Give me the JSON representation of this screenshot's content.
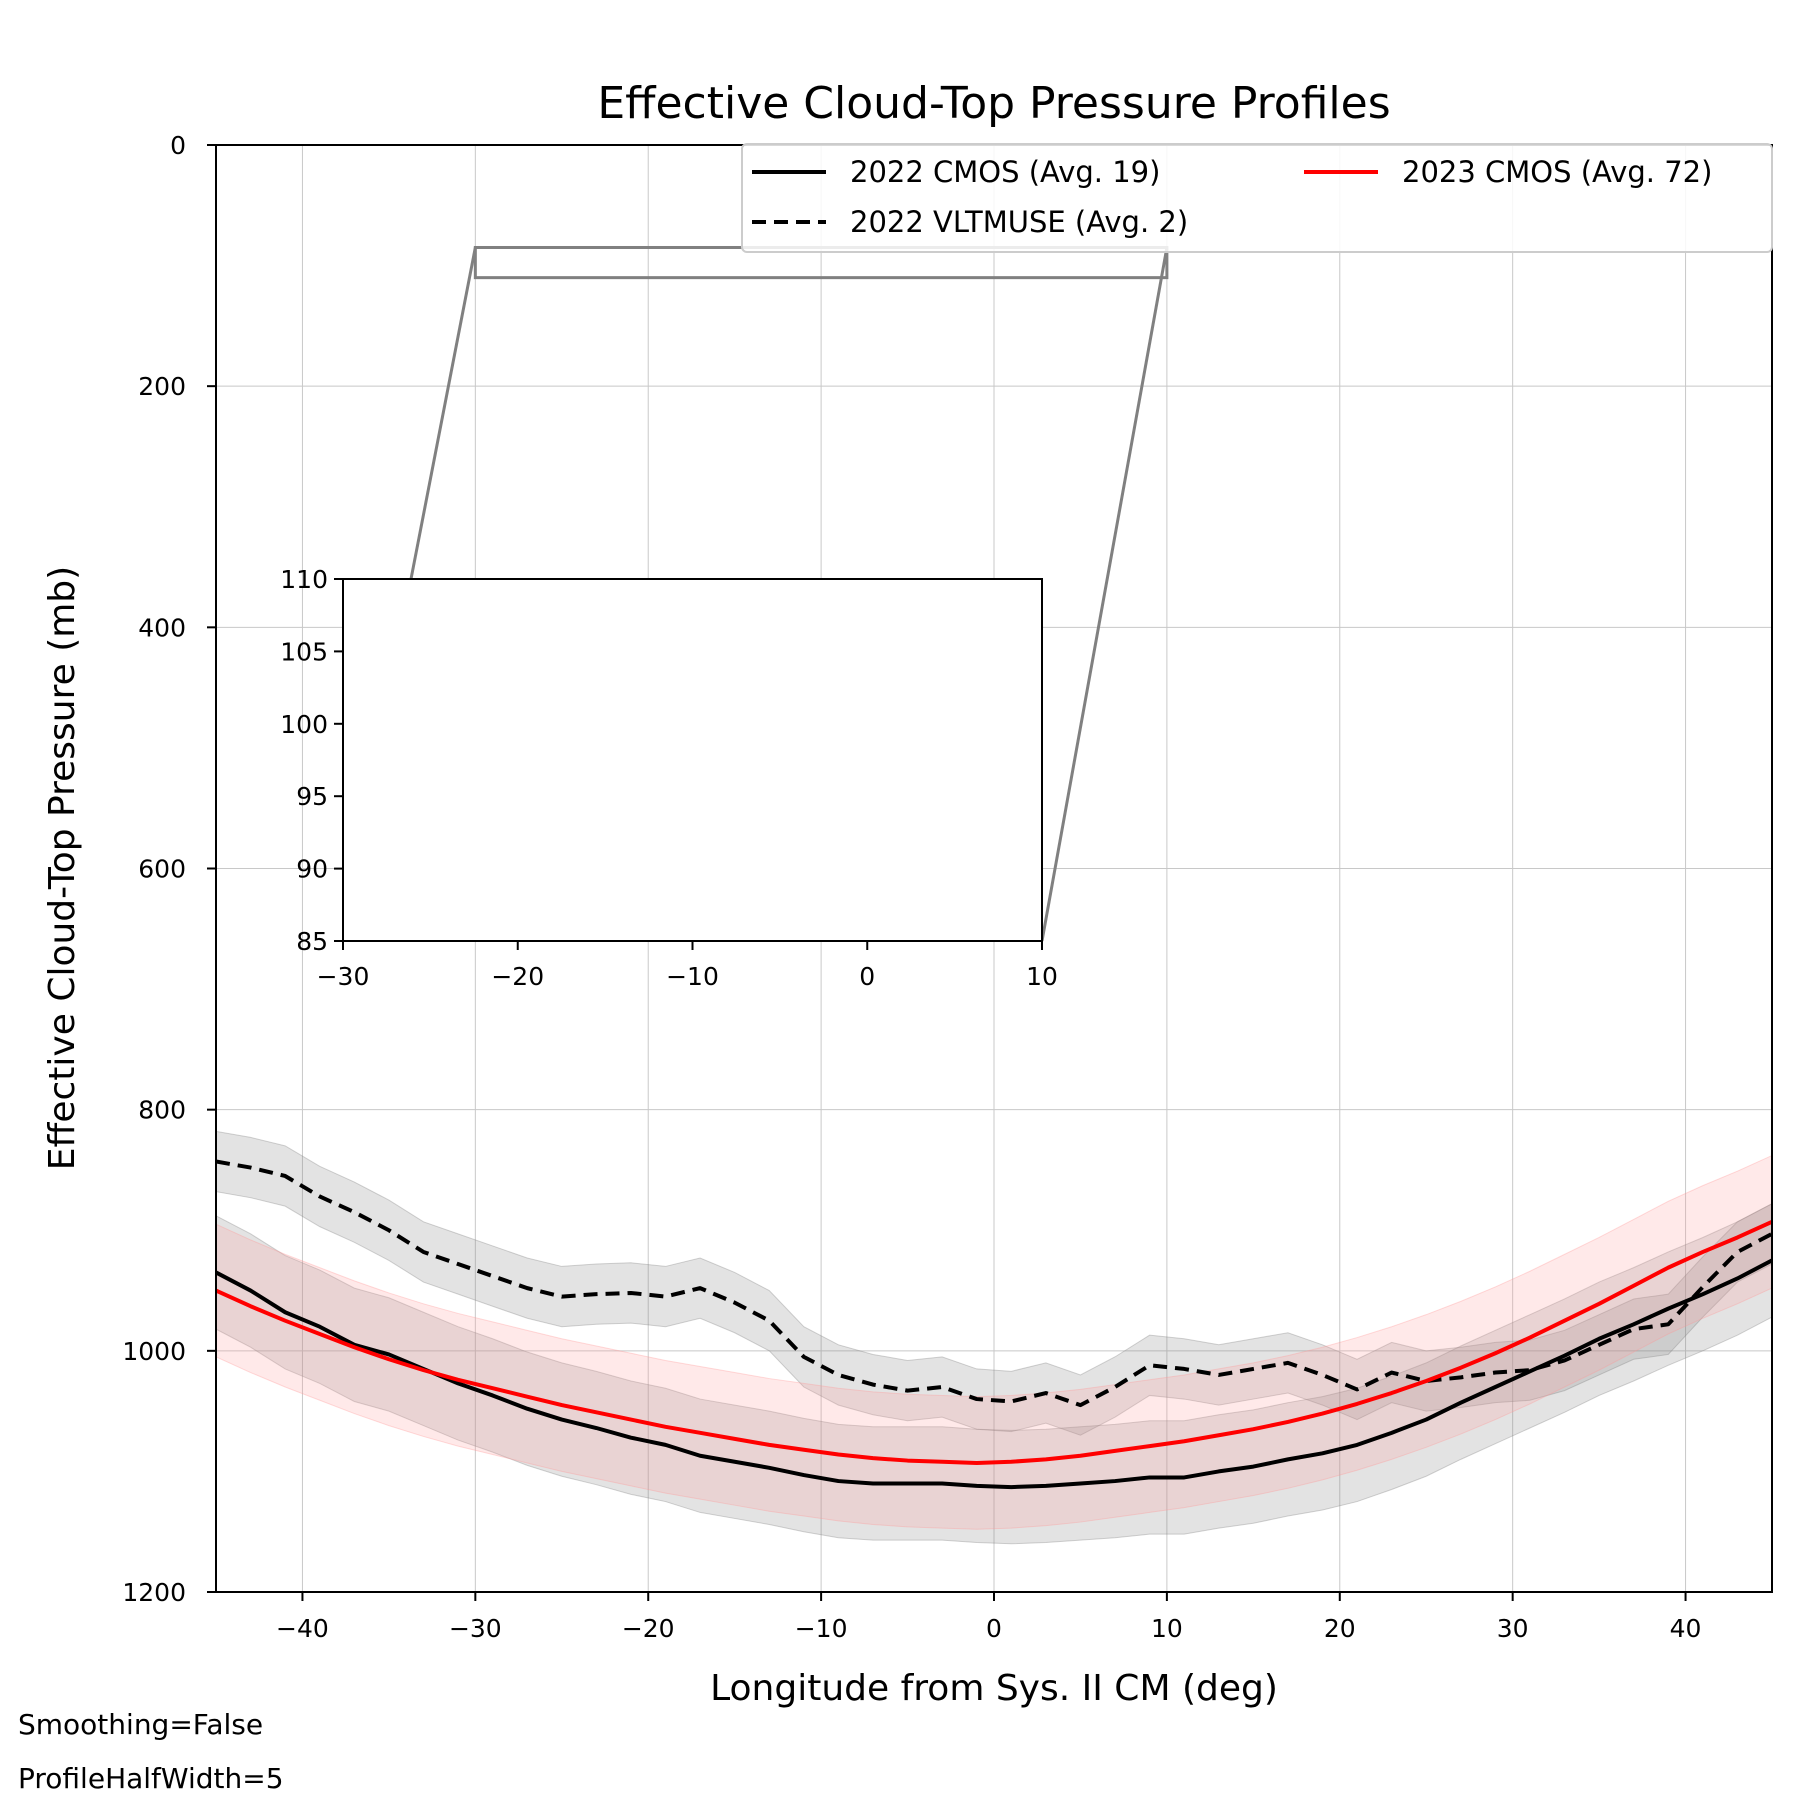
{
  "chart_data": {
    "type": "line",
    "title": "Effective Cloud-Top Pressure Profiles",
    "xlabel": "Longitude from Sys. II CM (deg)",
    "ylabel": "Effective Cloud-Top Pressure (mb)",
    "xlim": [
      -45,
      45
    ],
    "ylim": [
      1200,
      0
    ],
    "y_inverted": true,
    "grid": true,
    "legend_placement": "top-right",
    "x_ticks": [
      -40,
      -30,
      -20,
      -10,
      0,
      10,
      20,
      30,
      40
    ],
    "x_tick_labels": [
      "−40",
      "−30",
      "−20",
      "−10",
      "0",
      "10",
      "20",
      "30",
      "40"
    ],
    "y_ticks": [
      0,
      200,
      400,
      600,
      800,
      1000,
      1200
    ],
    "y_tick_labels": [
      "0",
      "200",
      "400",
      "600",
      "800",
      "1000",
      "1200"
    ],
    "series": [
      {
        "name": "2022 CMOS (Avg. 19)",
        "color": "#000000",
        "style": "solid",
        "band_color": "#808080",
        "x": [
          -45,
          -43,
          -41,
          -39,
          -37,
          -35,
          -33,
          -31,
          -29,
          -27,
          -25,
          -23,
          -21,
          -19,
          -17,
          -15,
          -13,
          -11,
          -9,
          -7,
          -5,
          -3,
          -1,
          1,
          3,
          5,
          7,
          9,
          11,
          13,
          15,
          17,
          19,
          21,
          23,
          25,
          27,
          29,
          31,
          33,
          35,
          37,
          39,
          41,
          43,
          45
        ],
        "y": [
          935,
          950,
          968,
          980,
          995,
          1003,
          1015,
          1027,
          1037,
          1048,
          1057,
          1064,
          1072,
          1078,
          1087,
          1092,
          1097,
          1103,
          1108,
          1110,
          1110,
          1110,
          1112,
          1113,
          1112,
          1110,
          1108,
          1105,
          1105,
          1100,
          1096,
          1090,
          1085,
          1078,
          1068,
          1057,
          1043,
          1030,
          1017,
          1004,
          990,
          978,
          965,
          953,
          940,
          925
        ],
        "band": 47
      },
      {
        "name": "2022 VLTMUSE (Avg. 2)",
        "color": "#000000",
        "style": "dashed",
        "band_color": "#808080",
        "x": [
          -45,
          -43,
          -41,
          -39,
          -37,
          -35,
          -33,
          -31,
          -29,
          -27,
          -25,
          -23,
          -21,
          -19,
          -17,
          -15,
          -13,
          -11,
          -9,
          -7,
          -5,
          -3,
          -1,
          1,
          3,
          5,
          7,
          9,
          11,
          13,
          15,
          17,
          19,
          21,
          23,
          25,
          27,
          29,
          31,
          33,
          35,
          37,
          39,
          41,
          43,
          45
        ],
        "y": [
          843,
          848,
          855,
          872,
          885,
          900,
          918,
          928,
          938,
          948,
          955,
          953,
          952,
          955,
          948,
          960,
          975,
          1005,
          1020,
          1028,
          1033,
          1030,
          1040,
          1042,
          1035,
          1045,
          1030,
          1012,
          1015,
          1020,
          1015,
          1010,
          1020,
          1032,
          1018,
          1025,
          1022,
          1018,
          1016,
          1008,
          995,
          982,
          978,
          947,
          918,
          903
        ],
        "band": 25
      },
      {
        "name": "2023 CMOS (Avg. 72)",
        "color": "#ff0000",
        "style": "solid",
        "band_color": "#ff9999",
        "x": [
          -45,
          -43,
          -41,
          -39,
          -37,
          -35,
          -33,
          -31,
          -29,
          -27,
          -25,
          -23,
          -21,
          -19,
          -17,
          -15,
          -13,
          -11,
          -9,
          -7,
          -5,
          -3,
          -1,
          1,
          3,
          5,
          7,
          9,
          11,
          13,
          15,
          17,
          19,
          21,
          23,
          25,
          27,
          29,
          31,
          33,
          35,
          37,
          39,
          41,
          43,
          45
        ],
        "y": [
          950,
          963,
          975,
          986,
          997,
          1007,
          1016,
          1024,
          1031,
          1038,
          1045,
          1051,
          1057,
          1063,
          1068,
          1073,
          1078,
          1082,
          1086,
          1089,
          1091,
          1092,
          1093,
          1092,
          1090,
          1087,
          1083,
          1079,
          1075,
          1070,
          1065,
          1059,
          1052,
          1044,
          1035,
          1025,
          1014,
          1002,
          989,
          975,
          961,
          946,
          931,
          918,
          906,
          893
        ],
        "band": 55
      }
    ],
    "inset": {
      "xlim": [
        -30,
        10
      ],
      "ylim": [
        85,
        110
      ],
      "x_ticks": [
        -30,
        -20,
        -10,
        0,
        10
      ],
      "x_tick_labels": [
        "−30",
        "−20",
        "−10",
        "0",
        "10"
      ],
      "y_ticks": [
        85,
        90,
        95,
        100,
        105,
        110
      ],
      "y_tick_labels": [
        "85",
        "90",
        "95",
        "100",
        "105",
        "110"
      ]
    },
    "annotations": [
      "Smoothing=False",
      "ProfileHalfWidth=5"
    ]
  }
}
